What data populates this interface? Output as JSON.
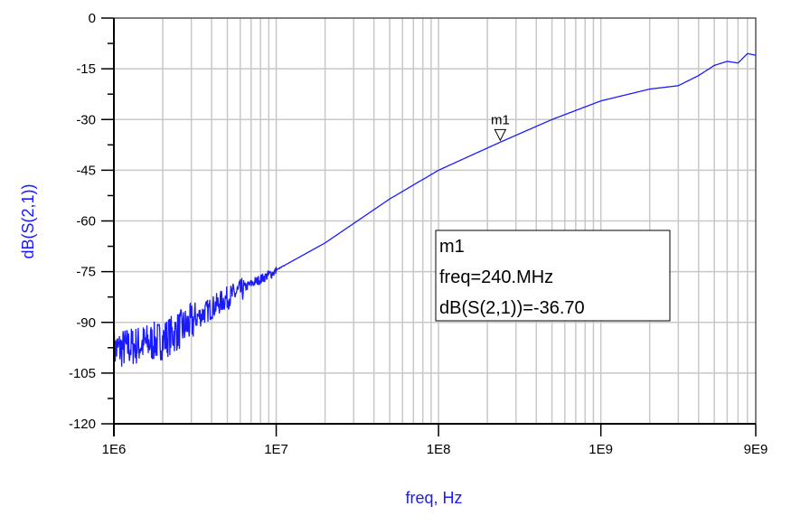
{
  "chart_data": {
    "type": "line",
    "xlabel": "freq, Hz",
    "ylabel": "dB(S(2,1))",
    "xscale": "log",
    "xlim": [
      1000000,
      9000000000
    ],
    "ylim": [
      -120,
      0
    ],
    "xticks": [
      {
        "v": 1000000,
        "label": "1E6"
      },
      {
        "v": 10000000,
        "label": "1E7"
      },
      {
        "v": 100000000,
        "label": "1E8"
      },
      {
        "v": 1000000000,
        "label": "1E9"
      },
      {
        "v": 9000000000,
        "label": "9E9"
      }
    ],
    "yticks": [
      0,
      -15,
      -30,
      -45,
      -60,
      -75,
      -90,
      -105,
      -120
    ],
    "grid": true,
    "line_color": "#1a1aff",
    "series": [
      {
        "x": [
          1000000,
          2000000,
          3000000,
          5000000,
          10000000,
          20000000,
          50000000,
          100000000,
          240000000,
          500000000,
          1000000000,
          2000000000,
          3000000000,
          4000000000,
          5000000000,
          6000000000,
          7000000000,
          8000000000,
          9000000000
        ],
        "y": [
          -97,
          -94,
          -89,
          -82,
          -74.5,
          -66.5,
          -53.5,
          -45,
          -36.7,
          -30,
          -24.5,
          -21,
          -20,
          -17,
          -14,
          -12.8,
          -13.3,
          -10.5,
          -11
        ]
      }
    ],
    "note_noise_below": "noisy below 1E7",
    "marker": {
      "name": "m1",
      "x": 240000000,
      "y": -36.7,
      "lines": [
        "m1",
        "freq=240.MHz",
        "dB(S(2,1))=-36.70"
      ]
    }
  }
}
